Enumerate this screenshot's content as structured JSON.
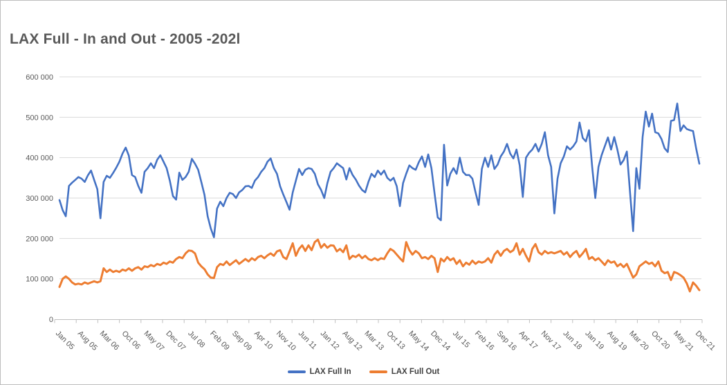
{
  "title": "LAX Full - In and Out - 2005 -202l",
  "chart_data": {
    "type": "line",
    "title": "LAX Full - In and Out - 2005 -202l",
    "xlabel": "",
    "ylabel": "",
    "grid": "horizontal",
    "legend_position": "bottom-center",
    "x_label_rotation_deg": 45,
    "x_axis": {
      "categories_are_months": true,
      "first_month": "Jan 05",
      "last_month": "Dec 21",
      "months_total": 204,
      "label_interval": 7,
      "tick_labels": [
        "Jan 05",
        "Aug 05",
        "Mar 06",
        "Oct 06",
        "May 07",
        "Dec 07",
        "Jul 08",
        "Feb 09",
        "Sep 09",
        "Apr 10",
        "Nov 10",
        "Jun 11",
        "Jan 12",
        "Aug 12",
        "Mar 13",
        "Oct 13",
        "May 14",
        "Dec 14",
        "Jul 15",
        "Feb 16",
        "Sep 16",
        "Apr 17",
        "Nov 17",
        "Jun 18",
        "Jan 19",
        "Aug 19",
        "Mar 20",
        "Oct 20",
        "May 21",
        "Dec 21"
      ]
    },
    "y_axis": {
      "min": 0,
      "max": 600000,
      "step": 100000,
      "tick_labels": [
        "0",
        "100 000",
        "200 000",
        "300 000",
        "400 000",
        "500 000",
        "600 000"
      ]
    },
    "series": [
      {
        "name": "LAX Full In",
        "color": "#4472C4",
        "values": [
          295000,
          270000,
          255000,
          330000,
          338000,
          345000,
          352000,
          348000,
          340000,
          356000,
          368000,
          345000,
          322000,
          250000,
          340000,
          355000,
          350000,
          362000,
          375000,
          390000,
          410000,
          425000,
          405000,
          357000,
          352000,
          330000,
          313000,
          365000,
          374000,
          386000,
          374000,
          395000,
          406000,
          390000,
          374000,
          343000,
          305000,
          296000,
          363000,
          345000,
          352000,
          365000,
          397000,
          385000,
          370000,
          340000,
          308000,
          255000,
          225000,
          203000,
          274000,
          291000,
          280000,
          300000,
          313000,
          310000,
          300000,
          314000,
          320000,
          329000,
          330000,
          325000,
          343000,
          352000,
          365000,
          374000,
          390000,
          398000,
          374000,
          360000,
          329000,
          309000,
          290000,
          271000,
          314000,
          343000,
          372000,
          357000,
          370000,
          374000,
          372000,
          360000,
          334000,
          320000,
          300000,
          337000,
          365000,
          374000,
          386000,
          380000,
          374000,
          346000,
          374000,
          357000,
          346000,
          331000,
          320000,
          314000,
          340000,
          360000,
          352000,
          368000,
          358000,
          368000,
          350000,
          343000,
          350000,
          329000,
          280000,
          337000,
          360000,
          381000,
          374000,
          370000,
          389000,
          403000,
          377000,
          408000,
          374000,
          312000,
          252000,
          245000,
          432000,
          331000,
          360000,
          374000,
          360000,
          400000,
          365000,
          357000,
          357000,
          348000,
          314000,
          283000,
          372000,
          400000,
          377000,
          406000,
          372000,
          383000,
          403000,
          415000,
          434000,
          410000,
          398000,
          420000,
          381000,
          303000,
          400000,
          412000,
          420000,
          434000,
          415000,
          434000,
          463000,
          406000,
          377000,
          262000,
          348000,
          386000,
          403000,
          428000,
          420000,
          428000,
          440000,
          487000,
          449000,
          440000,
          468000,
          377000,
          300000,
          377000,
          406000,
          428000,
          450000,
          420000,
          451000,
          420000,
          383000,
          394000,
          415000,
          314000,
          218000,
          374000,
          323000,
          451000,
          514000,
          477000,
          509000,
          463000,
          460000,
          446000,
          423000,
          414000,
          491000,
          493000,
          534000,
          466000,
          480000,
          471000,
          468000,
          466000,
          423000,
          385000
        ]
      },
      {
        "name": "LAX Full Out",
        "color": "#ED7D31",
        "values": [
          80000,
          100000,
          106000,
          100000,
          91000,
          86000,
          88000,
          86000,
          91000,
          88000,
          91000,
          94000,
          91000,
          94000,
          126000,
          117000,
          123000,
          117000,
          120000,
          117000,
          123000,
          120000,
          126000,
          120000,
          126000,
          129000,
          123000,
          131000,
          129000,
          134000,
          131000,
          137000,
          134000,
          140000,
          137000,
          143000,
          140000,
          149000,
          154000,
          151000,
          163000,
          170000,
          169000,
          163000,
          140000,
          131000,
          124000,
          111000,
          103000,
          102000,
          129000,
          137000,
          134000,
          143000,
          134000,
          140000,
          146000,
          137000,
          143000,
          149000,
          143000,
          151000,
          146000,
          154000,
          157000,
          151000,
          158000,
          163000,
          157000,
          168000,
          171000,
          154000,
          149000,
          168000,
          188000,
          157000,
          174000,
          183000,
          169000,
          183000,
          171000,
          191000,
          197000,
          177000,
          186000,
          177000,
          183000,
          182000,
          168000,
          174000,
          166000,
          183000,
          149000,
          157000,
          154000,
          160000,
          151000,
          157000,
          149000,
          146000,
          151000,
          146000,
          151000,
          149000,
          163000,
          174000,
          169000,
          160000,
          151000,
          143000,
          191000,
          171000,
          160000,
          169000,
          163000,
          151000,
          154000,
          149000,
          157000,
          151000,
          117000,
          150000,
          143000,
          154000,
          146000,
          151000,
          137000,
          146000,
          131000,
          140000,
          135000,
          145000,
          137000,
          143000,
          140000,
          143000,
          151000,
          140000,
          160000,
          169000,
          157000,
          169000,
          174000,
          166000,
          171000,
          188000,
          160000,
          174000,
          157000,
          143000,
          174000,
          186000,
          166000,
          160000,
          169000,
          163000,
          166000,
          163000,
          166000,
          169000,
          160000,
          166000,
          154000,
          163000,
          169000,
          154000,
          163000,
          174000,
          149000,
          154000,
          146000,
          151000,
          143000,
          134000,
          146000,
          140000,
          143000,
          131000,
          137000,
          129000,
          137000,
          120000,
          103000,
          111000,
          131000,
          137000,
          143000,
          137000,
          140000,
          131000,
          143000,
          120000,
          114000,
          117000,
          97000,
          117000,
          114000,
          109000,
          103000,
          89000,
          69000,
          91000,
          83000,
          72000
        ]
      }
    ],
    "legend": [
      {
        "label": "LAX Full In",
        "color": "#4472C4"
      },
      {
        "label": "LAX Full Out",
        "color": "#ED7D31"
      }
    ]
  },
  "colors": {
    "series_in": "#4472C4",
    "series_out": "#ED7D31",
    "title_text": "#595959",
    "axis_text": "#595959",
    "gridline": "#d9d9d9",
    "axis_line": "#bfbfbf",
    "background": "#ffffff"
  }
}
